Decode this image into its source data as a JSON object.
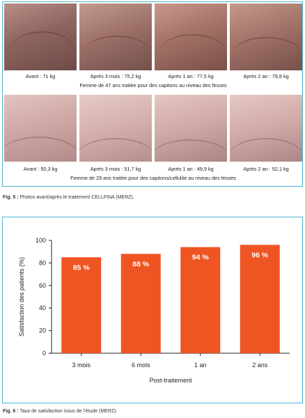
{
  "figure5": {
    "row1": {
      "captions": [
        "Avant : 71 kg",
        "Après 3 mois : 75,2 kg",
        "Après 1 an : 77,5 kg",
        "Après 2 an : 79,8 kg"
      ],
      "description": "Femme de 47 ans traitée pour des capitons au niveau des fesses"
    },
    "row2": {
      "captions": [
        "Avant : 50,3 kg",
        "Après 3 mois : 51,7 kg",
        "Après 1 an : 49,9 kg",
        "Après 2 an : 52,1 kg"
      ],
      "description": "Femme de 29 ans traitée pour des capitons/cellulite au niveau des fesses"
    },
    "caption_label": "Fig. 5 :",
    "caption_text": " Photos avant/après le traitement CELLFINA (MERZ)."
  },
  "figure6": {
    "caption_label": "Fig. 6 :",
    "caption_text": " Taux de satisfaction issus de l’étude (MERZ)."
  },
  "chart_data": {
    "type": "bar",
    "categories": [
      "3 mois",
      "6 mois",
      "1 an",
      "2 ans"
    ],
    "values": [
      85,
      88,
      94,
      96
    ],
    "data_labels": [
      "85 %",
      "88 %",
      "94 %",
      "96 %"
    ],
    "title": "",
    "xlabel": "Post-traitement",
    "ylabel": "Satisfaction des patients (%)",
    "ylim": [
      0,
      100
    ],
    "yticks": [
      0,
      20,
      40,
      60,
      80,
      100
    ],
    "grid": false,
    "bar_color": "#ee5522"
  }
}
